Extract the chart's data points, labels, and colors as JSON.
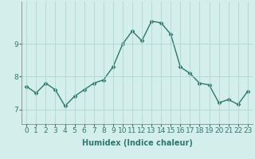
{
  "x": [
    0,
    1,
    2,
    3,
    4,
    5,
    6,
    7,
    8,
    9,
    10,
    11,
    12,
    13,
    14,
    15,
    16,
    17,
    18,
    19,
    20,
    21,
    22,
    23
  ],
  "y": [
    7.7,
    7.5,
    7.8,
    7.6,
    7.1,
    7.4,
    7.6,
    7.8,
    7.9,
    8.3,
    9.0,
    9.4,
    9.1,
    9.7,
    9.65,
    9.3,
    8.3,
    8.1,
    7.8,
    7.75,
    7.2,
    7.3,
    7.15,
    7.55
  ],
  "line_color": "#2a7a6e",
  "marker": "D",
  "marker_size": 2.5,
  "bg_color": "#d4eeeb",
  "grid_color": "#b0d8d3",
  "xlabel": "Humidex (Indice chaleur)",
  "ylabel_ticks": [
    7,
    8,
    9
  ],
  "ylim": [
    6.55,
    10.3
  ],
  "xlim": [
    -0.5,
    23.5
  ],
  "xlabel_fontsize": 7,
  "tick_fontsize": 6.5,
  "linewidth": 1.0
}
